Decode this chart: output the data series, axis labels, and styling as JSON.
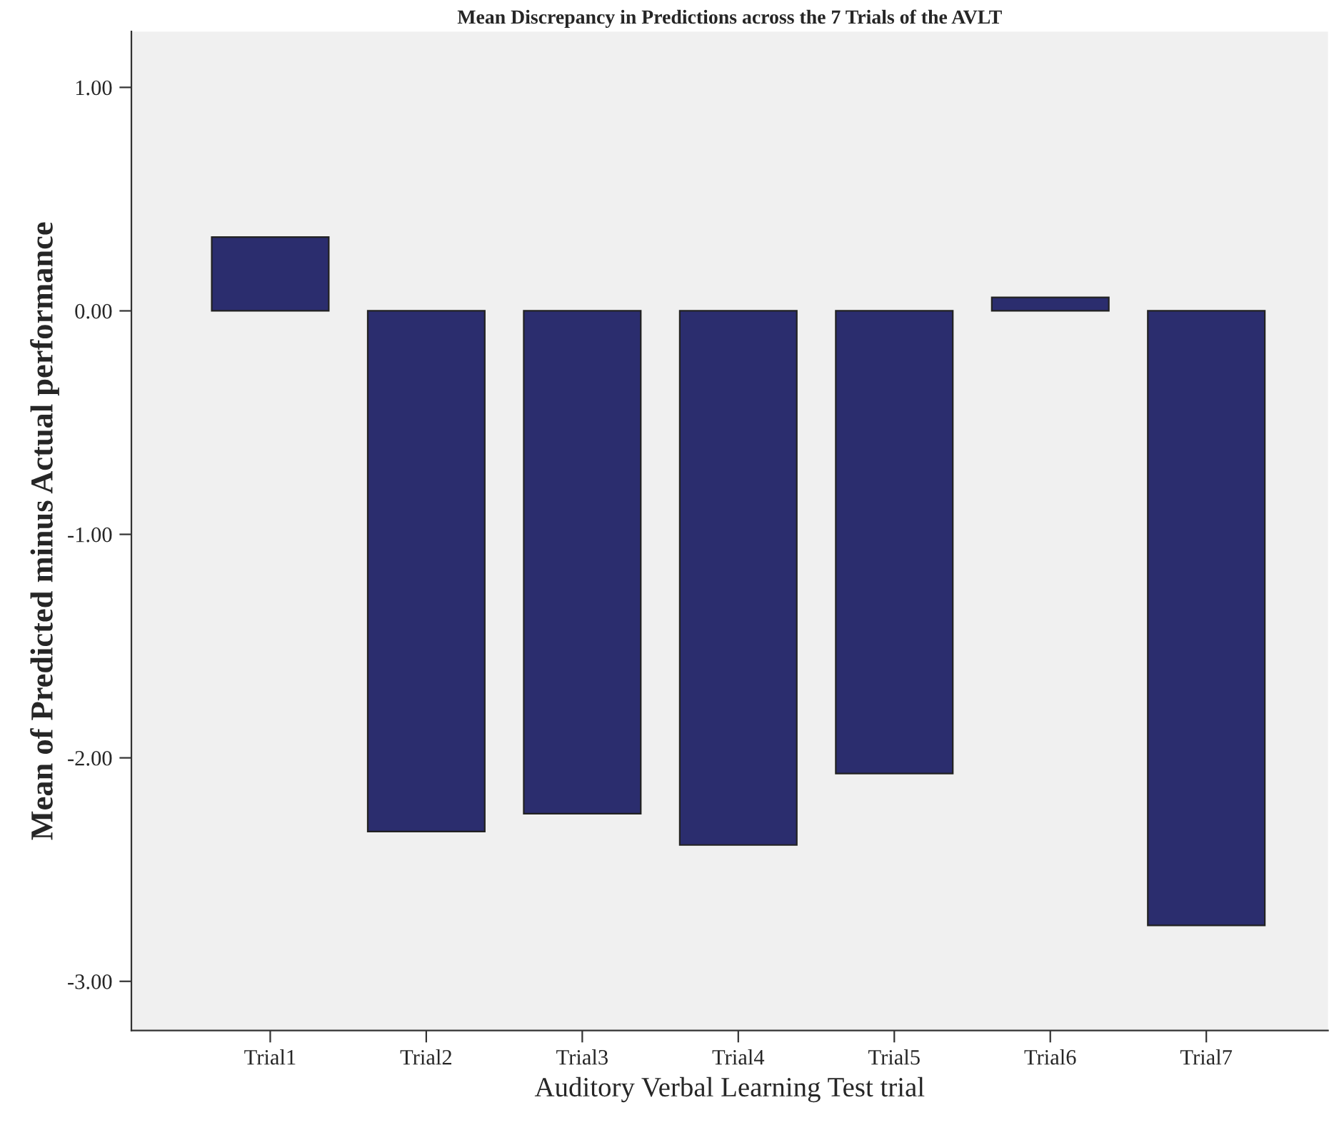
{
  "chart_data": {
    "type": "bar",
    "title": "Mean Discrepancy in Predictions across the 7 Trials of the AVLT",
    "xlabel": "Auditory Verbal Learning Test trial",
    "ylabel": "Mean of Predicted minus Actual performance",
    "categories": [
      "Trial1",
      "Trial2",
      "Trial3",
      "Trial4",
      "Trial5",
      "Trial6",
      "Trial7"
    ],
    "values": [
      0.33,
      -2.33,
      -2.25,
      -2.39,
      -2.07,
      0.06,
      -2.75
    ],
    "color": "#2b2d6e",
    "ylim": [
      -3.22,
      1.25
    ],
    "yticks": [
      {
        "value": -3,
        "label": "-3.00"
      },
      {
        "value": -2,
        "label": "-2.00"
      },
      {
        "value": -1,
        "label": "-1.00"
      },
      {
        "value": 0,
        "label": "0.00"
      },
      {
        "value": 1,
        "label": "1.00"
      }
    ],
    "grid": false,
    "legend": false
  }
}
